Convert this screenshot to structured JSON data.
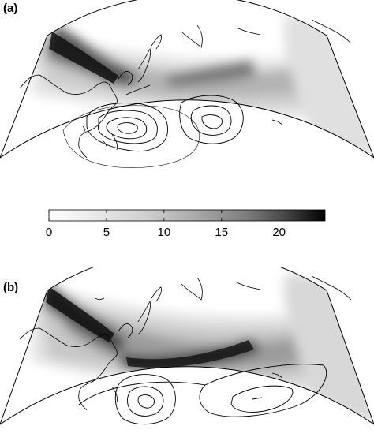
{
  "panels": [
    {
      "label": "(a)"
    },
    {
      "label": "(b)"
    }
  ],
  "colorbar": {
    "ticks": [
      "0",
      "5",
      "10",
      "15",
      "20"
    ],
    "min": 0,
    "max": 24,
    "tick_values": [
      0,
      5,
      10,
      15,
      20
    ],
    "colormap": [
      "#ffffff",
      "#e8e8e8",
      "#d4d4d4",
      "#bfbfbf",
      "#a8a8a8",
      "#8e8e8e",
      "#6f6f6f",
      "#4c4c4c",
      "#262626",
      "#000000"
    ]
  },
  "colors": {
    "ink": "#000000",
    "background": "#ffffff"
  }
}
